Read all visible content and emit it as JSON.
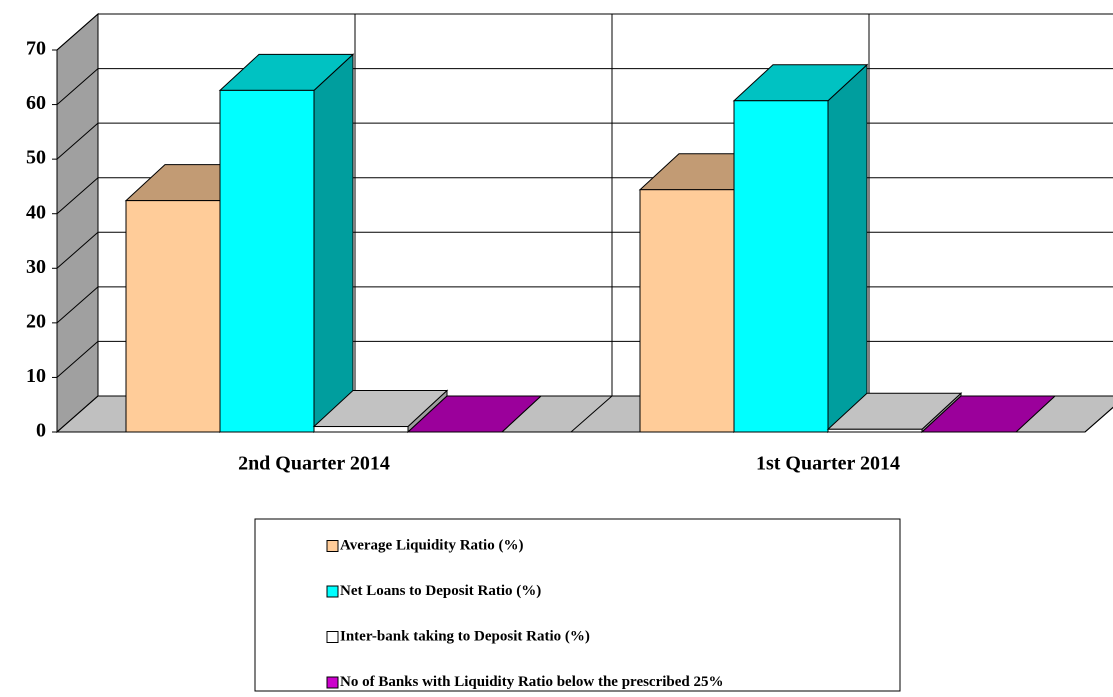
{
  "chart_data": {
    "type": "bar3d",
    "categories": [
      "2nd Quarter 2014",
      "1st Quarter 2014"
    ],
    "series": [
      {
        "name": "Average Liquidity Ratio (%)",
        "color": "#ffcc99",
        "values": [
          42.4,
          44.4
        ]
      },
      {
        "name": "Net Loans to Deposit Ratio (%)",
        "color": "#00ffff",
        "values": [
          62.6,
          60.7
        ]
      },
      {
        "name": "Inter-bank taking to Deposit Ratio (%)",
        "color": "#ffffff",
        "values": [
          1.0,
          0.5
        ]
      },
      {
        "name": "No of Banks with Liquidity Ratio below the prescribed 25%",
        "color": "#cc00cc",
        "values": [
          0,
          0
        ]
      }
    ],
    "ylim": [
      0,
      70
    ],
    "yticks": [
      0,
      10,
      20,
      30,
      40,
      50,
      60,
      70
    ],
    "grid": true,
    "legend": "bottom"
  }
}
